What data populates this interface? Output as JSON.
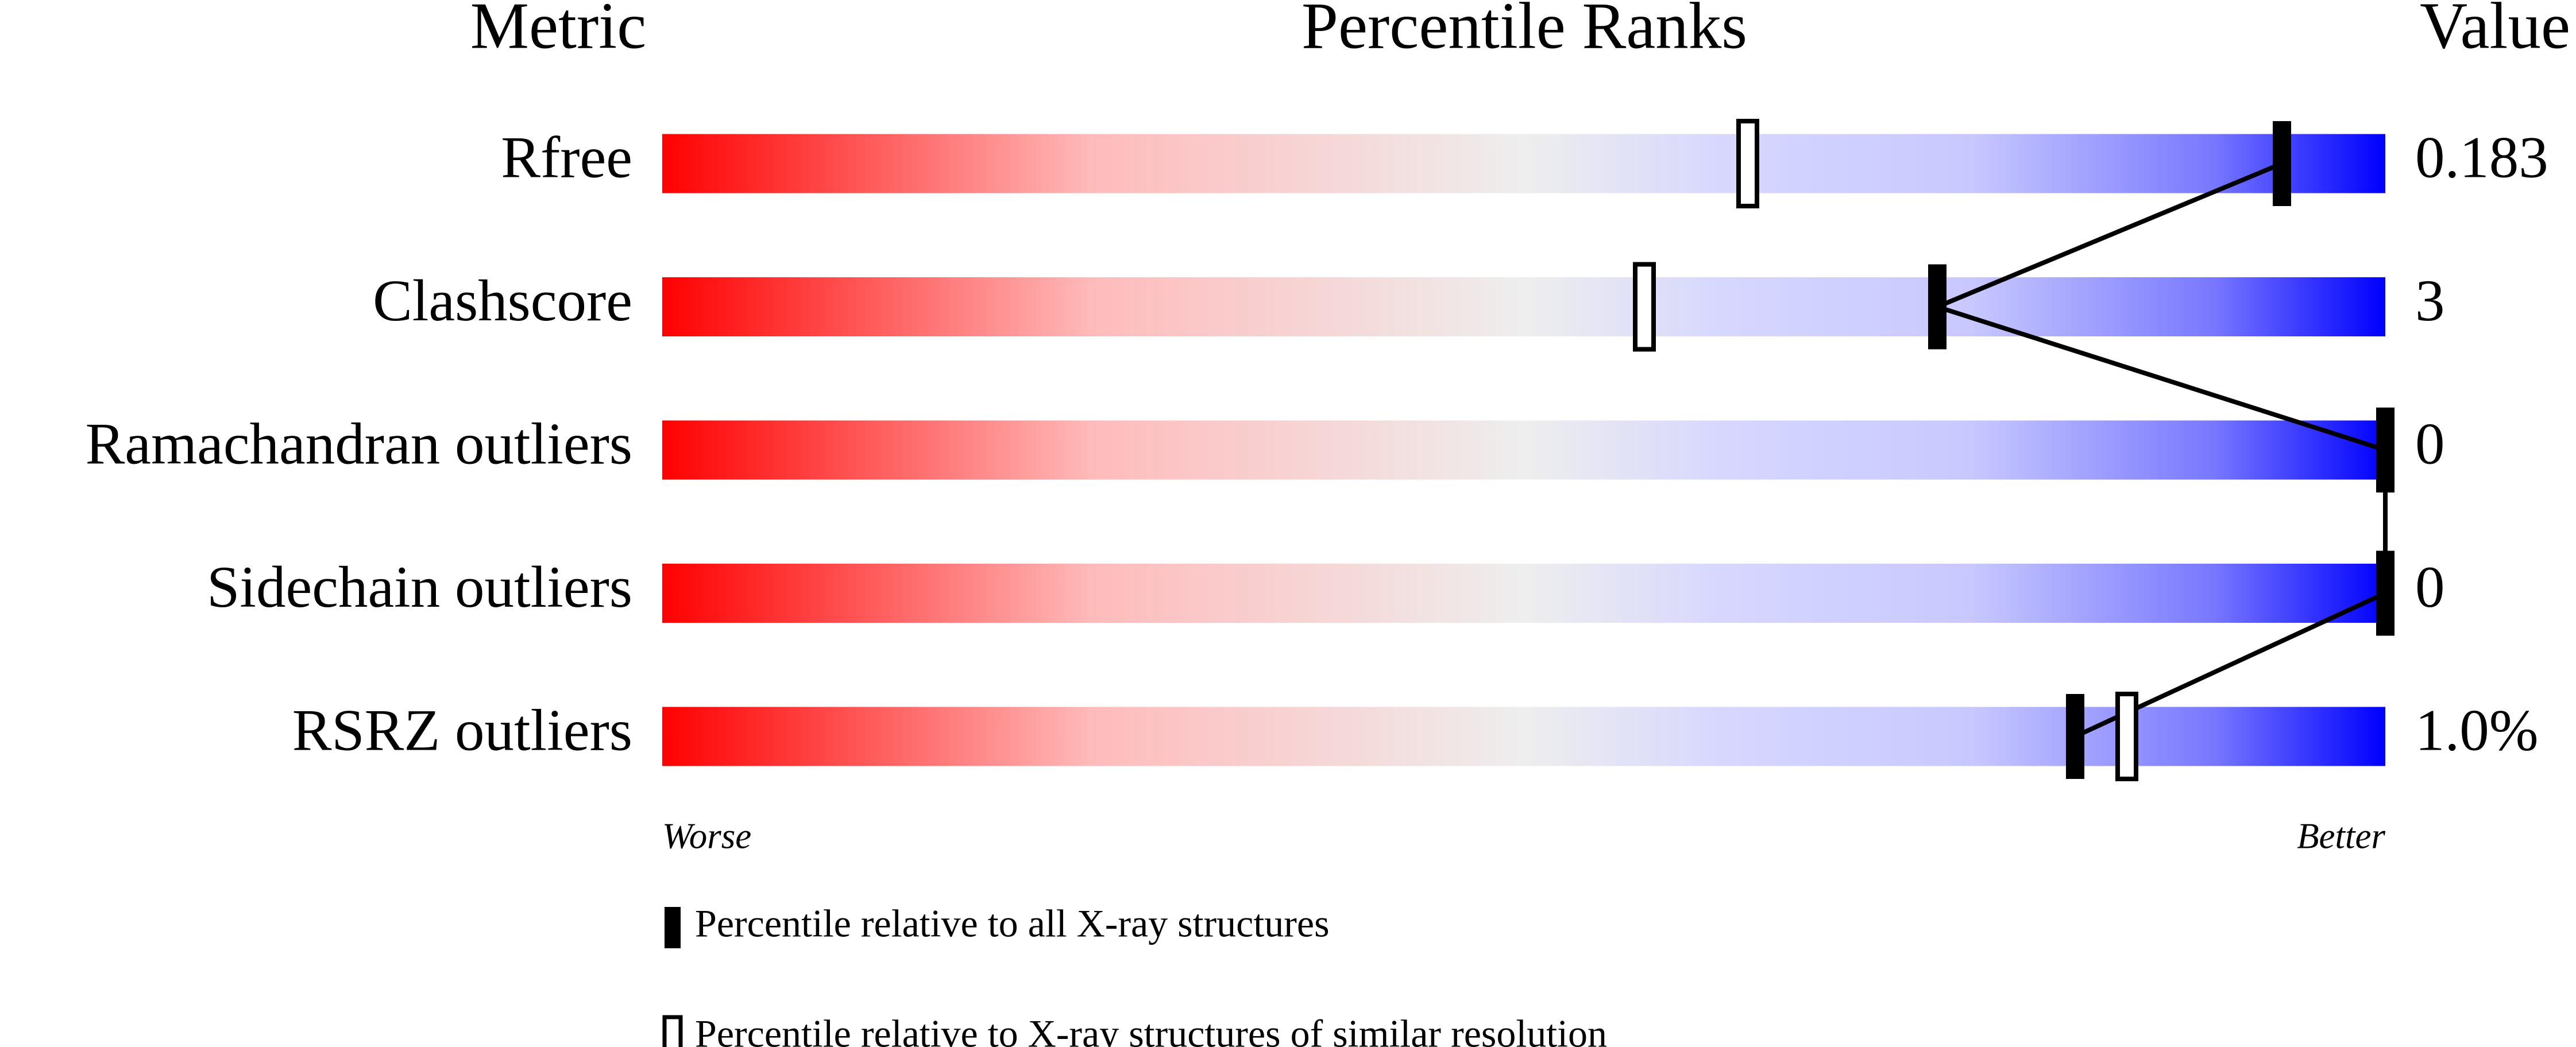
{
  "chart_data": {
    "type": "percentile-slider",
    "headers": {
      "metric": "Metric",
      "ranks": "Percentile Ranks",
      "value": "Value"
    },
    "categories": [
      "Rfree",
      "Clashscore",
      "Ramachandran outliers",
      "Sidechain outliers",
      "RSRZ outliers"
    ],
    "metric_values": [
      "0.183",
      "3",
      "0",
      "0",
      "1.0%"
    ],
    "xlim": [
      0,
      100
    ],
    "x_end_labels": [
      "Worse",
      "Better"
    ],
    "series": [
      {
        "name": "Percentile relative to all X-ray structures",
        "color": "#000000",
        "filled": true,
        "values": [
          94,
          74,
          100,
          100,
          82
        ]
      },
      {
        "name": "Percentile relative to X-ray structures of similar resolution",
        "color": "#000000",
        "filled": false,
        "values": [
          63,
          57,
          null,
          null,
          85
        ]
      }
    ]
  }
}
